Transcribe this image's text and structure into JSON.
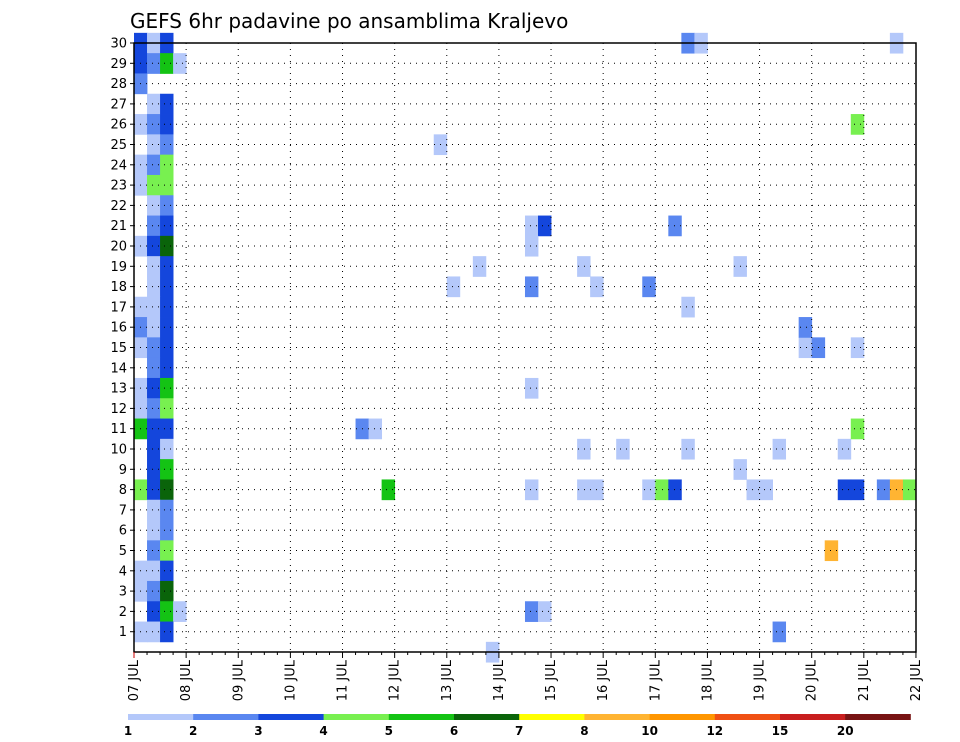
{
  "chart_data": {
    "type": "heatmap",
    "title": "GEFS 6hr padavine po ansamblima Kraljevo",
    "xlabel": "",
    "ylabel": "",
    "x_ticks": [
      "07 JUL",
      "08 JUL",
      "09 JUL",
      "10 JUL",
      "11 JUL",
      "12 JUL",
      "13 JUL",
      "14 JUL",
      "15 JUL",
      "16 JUL",
      "17 JUL",
      "18 JUL",
      "19 JUL",
      "20 JUL",
      "21 JUL",
      "22 JUL"
    ],
    "y_ticks": [
      "1",
      "2",
      "3",
      "4",
      "5",
      "6",
      "7",
      "8",
      "9",
      "10",
      "11",
      "12",
      "13",
      "14",
      "15",
      "16",
      "17",
      "18",
      "19",
      "20",
      "21",
      "22",
      "23",
      "24",
      "25",
      "26",
      "27",
      "28",
      "29",
      "30"
    ],
    "ylim": [
      0,
      30
    ],
    "grid": true,
    "colorbar": {
      "labels": [
        "1",
        "2",
        "3",
        "4",
        "5",
        "6",
        "7",
        "8",
        "10",
        "12",
        "15",
        "20"
      ],
      "colors": [
        "#b4c8fa",
        "#5a87f0",
        "#1446dc",
        "#78f050",
        "#14c314",
        "#0a640a",
        "#ffff00",
        "#ffb432",
        "#ff9600",
        "#f05014",
        "#c81e1e",
        "#781414"
      ]
    },
    "cells": [
      {
        "date": "07 JUL 00Z",
        "member": 30,
        "value": 3.5
      },
      {
        "date": "07 JUL 06Z",
        "member": 30,
        "value": 1.5
      },
      {
        "date": "07 JUL 12Z",
        "member": 30,
        "value": 3.5
      },
      {
        "date": "07 JUL 00Z",
        "member": 29,
        "value": 3.5
      },
      {
        "date": "07 JUL 06Z",
        "member": 29,
        "value": 2.5
      },
      {
        "date": "07 JUL 12Z",
        "member": 29,
        "value": 5.5
      },
      {
        "date": "07 JUL 18Z",
        "member": 29,
        "value": 1.5
      },
      {
        "date": "07 JUL 00Z",
        "member": 28,
        "value": 2.5
      },
      {
        "date": "07 JUL 06Z",
        "member": 27,
        "value": 1.5
      },
      {
        "date": "07 JUL 12Z",
        "member": 27,
        "value": 3.5
      },
      {
        "date": "07 JUL 00Z",
        "member": 26,
        "value": 1.5
      },
      {
        "date": "07 JUL 06Z",
        "member": 26,
        "value": 2.5
      },
      {
        "date": "07 JUL 12Z",
        "member": 26,
        "value": 3.5
      },
      {
        "date": "07 JUL 06Z",
        "member": 25,
        "value": 1.5
      },
      {
        "date": "07 JUL 12Z",
        "member": 25,
        "value": 2.5
      },
      {
        "date": "07 JUL 00Z",
        "member": 24,
        "value": 1.5
      },
      {
        "date": "07 JUL 06Z",
        "member": 24,
        "value": 2.5
      },
      {
        "date": "07 JUL 12Z",
        "member": 24,
        "value": 4.5
      },
      {
        "date": "07 JUL 00Z",
        "member": 23,
        "value": 1.5
      },
      {
        "date": "07 JUL 06Z",
        "member": 23,
        "value": 4.5
      },
      {
        "date": "07 JUL 12Z",
        "member": 23,
        "value": 4.5
      },
      {
        "date": "07 JUL 06Z",
        "member": 22,
        "value": 1.5
      },
      {
        "date": "07 JUL 12Z",
        "member": 22,
        "value": 2.5
      },
      {
        "date": "07 JUL 06Z",
        "member": 21,
        "value": 2.5
      },
      {
        "date": "07 JUL 12Z",
        "member": 21,
        "value": 3.5
      },
      {
        "date": "07 JUL 00Z",
        "member": 20,
        "value": 1.5
      },
      {
        "date": "07 JUL 06Z",
        "member": 20,
        "value": 3.5
      },
      {
        "date": "07 JUL 12Z",
        "member": 20,
        "value": 6.5
      },
      {
        "date": "07 JUL 06Z",
        "member": 19,
        "value": 1.5
      },
      {
        "date": "07 JUL 12Z",
        "member": 19,
        "value": 3.5
      },
      {
        "date": "07 JUL 06Z",
        "member": 18,
        "value": 1.5
      },
      {
        "date": "07 JUL 12Z",
        "member": 18,
        "value": 3.5
      },
      {
        "date": "07 JUL 00Z",
        "member": 17,
        "value": 1.5
      },
      {
        "date": "07 JUL 06Z",
        "member": 17,
        "value": 1.5
      },
      {
        "date": "07 JUL 12Z",
        "member": 17,
        "value": 3.5
      },
      {
        "date": "07 JUL 00Z",
        "member": 16,
        "value": 2.5
      },
      {
        "date": "07 JUL 06Z",
        "member": 16,
        "value": 1.5
      },
      {
        "date": "07 JUL 12Z",
        "member": 16,
        "value": 3.5
      },
      {
        "date": "07 JUL 00Z",
        "member": 15,
        "value": 1.5
      },
      {
        "date": "07 JUL 06Z",
        "member": 15,
        "value": 2.5
      },
      {
        "date": "07 JUL 12Z",
        "member": 15,
        "value": 3.5
      },
      {
        "date": "07 JUL 06Z",
        "member": 14,
        "value": 2.5
      },
      {
        "date": "07 JUL 12Z",
        "member": 14,
        "value": 3.5
      },
      {
        "date": "07 JUL 00Z",
        "member": 13,
        "value": 1.5
      },
      {
        "date": "07 JUL 06Z",
        "member": 13,
        "value": 3.5
      },
      {
        "date": "07 JUL 12Z",
        "member": 13,
        "value": 5.5
      },
      {
        "date": "07 JUL 00Z",
        "member": 12,
        "value": 1.5
      },
      {
        "date": "07 JUL 06Z",
        "member": 12,
        "value": 2.5
      },
      {
        "date": "07 JUL 12Z",
        "member": 12,
        "value": 4.5
      },
      {
        "date": "07 JUL 00Z",
        "member": 11,
        "value": 5.5
      },
      {
        "date": "07 JUL 06Z",
        "member": 11,
        "value": 3.5
      },
      {
        "date": "07 JUL 12Z",
        "member": 11,
        "value": 3.5
      },
      {
        "date": "07 JUL 06Z",
        "member": 10,
        "value": 3.5
      },
      {
        "date": "07 JUL 12Z",
        "member": 10,
        "value": 1.5
      },
      {
        "date": "07 JUL 06Z",
        "member": 9,
        "value": 3.5
      },
      {
        "date": "07 JUL 12Z",
        "member": 9,
        "value": 5.5
      },
      {
        "date": "07 JUL 00Z",
        "member": 8,
        "value": 4.5
      },
      {
        "date": "07 JUL 06Z",
        "member": 8,
        "value": 3.5
      },
      {
        "date": "07 JUL 12Z",
        "member": 8,
        "value": 6.5
      },
      {
        "date": "07 JUL 06Z",
        "member": 7,
        "value": 1.5
      },
      {
        "date": "07 JUL 12Z",
        "member": 7,
        "value": 2.5
      },
      {
        "date": "07 JUL 06Z",
        "member": 6,
        "value": 1.5
      },
      {
        "date": "07 JUL 12Z",
        "member": 6,
        "value": 2.5
      },
      {
        "date": "07 JUL 06Z",
        "member": 5,
        "value": 2.5
      },
      {
        "date": "07 JUL 12Z",
        "member": 5,
        "value": 4.5
      },
      {
        "date": "07 JUL 00Z",
        "member": 4,
        "value": 1.5
      },
      {
        "date": "07 JUL 06Z",
        "member": 4,
        "value": 1.5
      },
      {
        "date": "07 JUL 12Z",
        "member": 4,
        "value": 3.5
      },
      {
        "date": "07 JUL 00Z",
        "member": 3,
        "value": 1.5
      },
      {
        "date": "07 JUL 06Z",
        "member": 3,
        "value": 2.5
      },
      {
        "date": "07 JUL 12Z",
        "member": 3,
        "value": 6.5
      },
      {
        "date": "07 JUL 06Z",
        "member": 2,
        "value": 3.5
      },
      {
        "date": "07 JUL 12Z",
        "member": 2,
        "value": 5.5
      },
      {
        "date": "07 JUL 18Z",
        "member": 2,
        "value": 1.5
      },
      {
        "date": "07 JUL 00Z",
        "member": 1,
        "value": 1.5
      },
      {
        "date": "07 JUL 06Z",
        "member": 1,
        "value": 1.5
      },
      {
        "date": "07 JUL 12Z",
        "member": 1,
        "value": 3.5
      },
      {
        "date": "11 JUL 06Z",
        "member": 11,
        "value": 2.5
      },
      {
        "date": "11 JUL 12Z",
        "member": 11,
        "value": 1.5
      },
      {
        "date": "11 JUL 18Z",
        "member": 8,
        "value": 5.5
      },
      {
        "date": "12 JUL 18Z",
        "member": 25,
        "value": 1.5
      },
      {
        "date": "13 JUL 00Z",
        "member": 18,
        "value": 1.5
      },
      {
        "date": "13 JUL 12Z",
        "member": 19,
        "value": 1.5
      },
      {
        "date": "13 JUL 18Z",
        "member": 0,
        "value": 1.5
      },
      {
        "date": "14 JUL 12Z",
        "member": 21,
        "value": 1.5
      },
      {
        "date": "14 JUL 18Z",
        "member": 21,
        "value": 3.5
      },
      {
        "date": "14 JUL 12Z",
        "member": 20,
        "value": 1.5
      },
      {
        "date": "14 JUL 12Z",
        "member": 18,
        "value": 2.5
      },
      {
        "date": "14 JUL 12Z",
        "member": 13,
        "value": 1.5
      },
      {
        "date": "14 JUL 12Z",
        "member": 8,
        "value": 1.5
      },
      {
        "date": "14 JUL 12Z",
        "member": 2,
        "value": 2.5
      },
      {
        "date": "14 JUL 18Z",
        "member": 2,
        "value": 1.5
      },
      {
        "date": "15 JUL 12Z",
        "member": 19,
        "value": 1.5
      },
      {
        "date": "15 JUL 18Z",
        "member": 18,
        "value": 1.5
      },
      {
        "date": "15 JUL 12Z",
        "member": 10,
        "value": 1.5
      },
      {
        "date": "15 JUL 12Z",
        "member": 8,
        "value": 1.5
      },
      {
        "date": "15 JUL 18Z",
        "member": 8,
        "value": 1.5
      },
      {
        "date": "16 JUL 06Z",
        "member": 10,
        "value": 1.5
      },
      {
        "date": "16 JUL 18Z",
        "member": 18,
        "value": 2.5
      },
      {
        "date": "16 JUL 18Z",
        "member": 8,
        "value": 1.5
      },
      {
        "date": "17 JUL 00Z",
        "member": 8,
        "value": 4.5
      },
      {
        "date": "17 JUL 06Z",
        "member": 21,
        "value": 2.5
      },
      {
        "date": "17 JUL 06Z",
        "member": 8,
        "value": 3.5
      },
      {
        "date": "17 JUL 12Z",
        "member": 30,
        "value": 2.5
      },
      {
        "date": "17 JUL 18Z",
        "member": 30,
        "value": 1.5
      },
      {
        "date": "17 JUL 12Z",
        "member": 17,
        "value": 1.5
      },
      {
        "date": "17 JUL 12Z",
        "member": 10,
        "value": 1.5
      },
      {
        "date": "18 JUL 12Z",
        "member": 19,
        "value": 1.5
      },
      {
        "date": "18 JUL 12Z",
        "member": 9,
        "value": 1.5
      },
      {
        "date": "18 JUL 18Z",
        "member": 8,
        "value": 1.5
      },
      {
        "date": "19 JUL 00Z",
        "member": 8,
        "value": 1.5
      },
      {
        "date": "19 JUL 06Z",
        "member": 10,
        "value": 1.5
      },
      {
        "date": "19 JUL 06Z",
        "member": 1,
        "value": 2.5
      },
      {
        "date": "19 JUL 18Z",
        "member": 15,
        "value": 1.5
      },
      {
        "date": "20 JUL 00Z",
        "member": 15,
        "value": 2.5
      },
      {
        "date": "19 JUL 18Z",
        "member": 16,
        "value": 2.5
      },
      {
        "date": "20 JUL 06Z",
        "member": 5,
        "value": 8.5
      },
      {
        "date": "20 JUL 12Z",
        "member": 10,
        "value": 1.5
      },
      {
        "date": "20 JUL 12Z",
        "member": 8,
        "value": 3.5
      },
      {
        "date": "20 JUL 18Z",
        "member": 8,
        "value": 3.5
      },
      {
        "date": "20 JUL 18Z",
        "member": 26,
        "value": 4.5
      },
      {
        "date": "20 JUL 18Z",
        "member": 15,
        "value": 1.5
      },
      {
        "date": "20 JUL 18Z",
        "member": 11,
        "value": 4.5
      },
      {
        "date": "21 JUL 06Z",
        "member": 8,
        "value": 2.5
      },
      {
        "date": "21 JUL 12Z",
        "member": 8,
        "value": 8.5
      },
      {
        "date": "21 JUL 18Z",
        "member": 8,
        "value": 4.5
      },
      {
        "date": "21 JUL 12Z",
        "member": 30,
        "value": 1.5
      }
    ]
  }
}
